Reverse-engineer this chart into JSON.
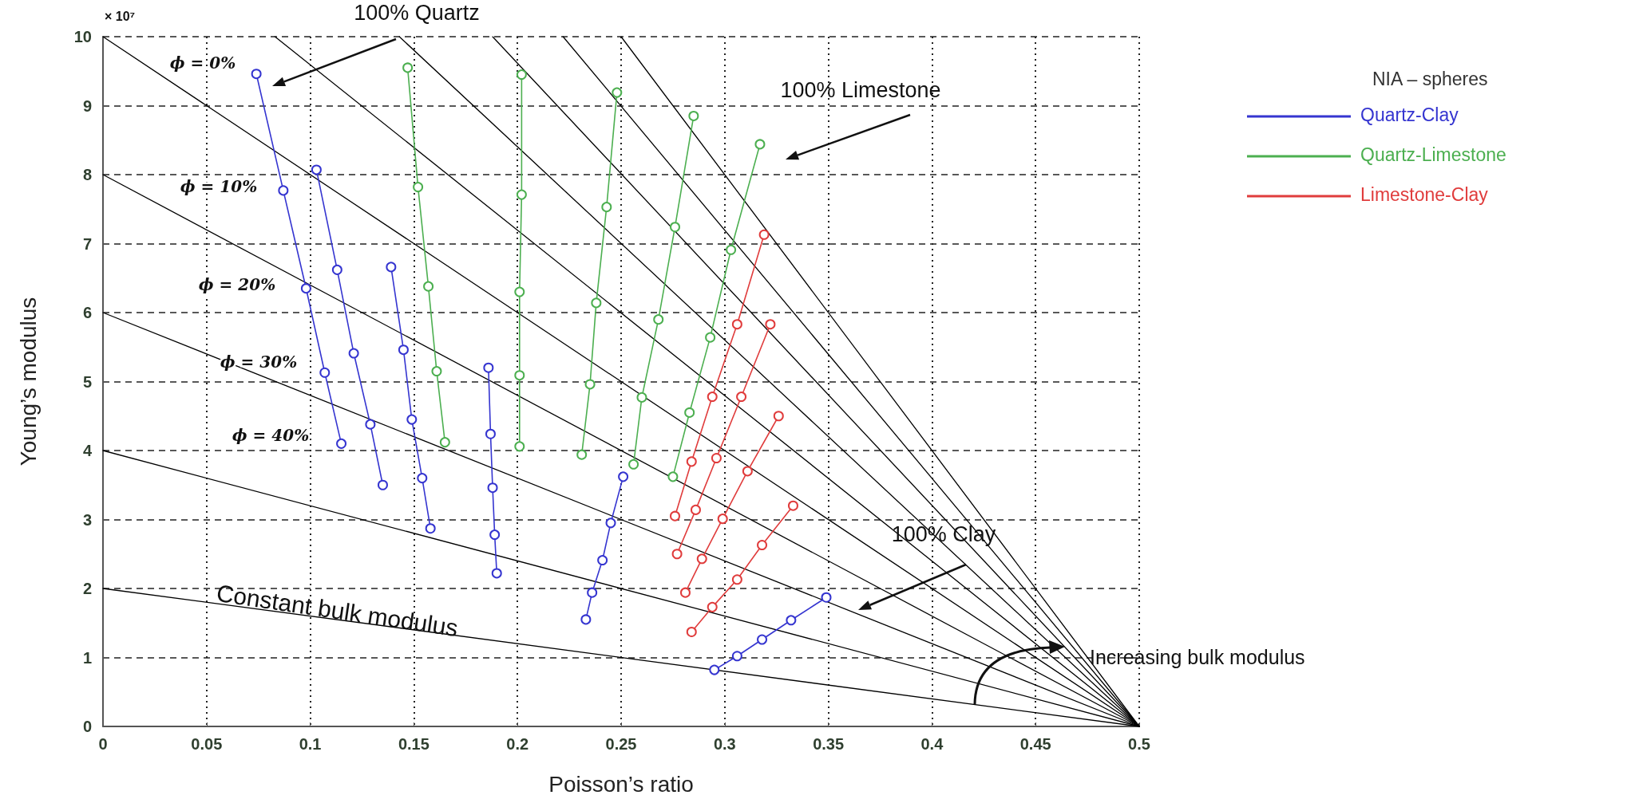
{
  "chart_data": {
    "type": "line",
    "xlabel": "Poisson’s ratio",
    "ylabel": "Young’s modulus",
    "legend_title": "NIA – spheres",
    "xlim": [
      0,
      0.5
    ],
    "xticks": [
      0,
      0.05,
      0.1,
      0.15,
      0.2,
      0.25,
      0.3,
      0.35,
      0.4,
      0.45,
      0.5
    ],
    "ylim": [
      0,
      10
    ],
    "yticks": [
      0,
      1,
      2,
      3,
      4,
      5,
      6,
      7,
      8,
      9,
      10
    ],
    "grid": true,
    "legend": "right",
    "marker": "circle",
    "line_style": "solid",
    "series": [
      {
        "name": "Quartz-Clay",
        "color": "#3535d0",
        "x": [
          0.074,
          0.087,
          0.098,
          0.107,
          0.115,
          null,
          0.103,
          0.113,
          0.121,
          0.129,
          0.135,
          null,
          0.139,
          0.145,
          0.149,
          0.154,
          0.158,
          null,
          0.186,
          0.187,
          0.188,
          0.189,
          0.19,
          null,
          0.233,
          0.236,
          0.241,
          0.245,
          0.251,
          null,
          0.295,
          0.306,
          0.318,
          0.332,
          0.349
        ],
        "values": [
          9.46,
          7.77,
          6.35,
          5.13,
          4.1,
          null,
          8.07,
          6.62,
          5.41,
          4.38,
          3.5,
          null,
          6.66,
          5.46,
          4.45,
          3.6,
          2.87,
          null,
          5.2,
          4.24,
          3.46,
          2.78,
          2.22,
          null,
          1.55,
          1.94,
          2.41,
          2.95,
          3.62,
          null,
          0.82,
          1.02,
          1.26,
          1.54,
          1.87
        ]
      },
      {
        "name": "Quartz-Limestone",
        "color": "#4caf50",
        "x": [
          0.147,
          0.152,
          0.157,
          0.161,
          0.165,
          null,
          0.202,
          0.202,
          0.201,
          0.201,
          0.201,
          null,
          0.248,
          0.243,
          0.238,
          0.235,
          0.231,
          null,
          0.285,
          0.276,
          0.268,
          0.26,
          0.256,
          null,
          0.317,
          0.303,
          0.293,
          0.283,
          0.275
        ],
        "values": [
          9.55,
          7.82,
          6.38,
          5.15,
          4.12,
          null,
          9.45,
          7.71,
          6.3,
          5.09,
          4.06,
          null,
          9.19,
          7.53,
          6.14,
          4.96,
          3.94,
          null,
          8.85,
          7.24,
          5.9,
          4.77,
          3.8,
          null,
          8.44,
          6.91,
          5.64,
          4.55,
          3.62
        ]
      },
      {
        "name": "Limestone-Clay",
        "color": "#e03c3c",
        "x": [
          0.319,
          0.306,
          0.294,
          0.284,
          0.276,
          null,
          0.322,
          0.308,
          0.296,
          0.286,
          0.277,
          null,
          0.326,
          0.311,
          0.299,
          0.289,
          0.281,
          null,
          0.333,
          0.318,
          0.306,
          0.294,
          0.284
        ],
        "values": [
          7.13,
          5.83,
          4.78,
          3.84,
          3.05,
          null,
          5.83,
          4.78,
          3.89,
          3.14,
          2.5,
          null,
          4.5,
          3.7,
          3.01,
          2.43,
          1.94,
          null,
          3.2,
          2.63,
          2.13,
          1.73,
          1.37
        ]
      },
      {
        "color": "#000000",
        "marker": "none",
        "x": [
          0,
          0.5
        ],
        "values": [
          2,
          0
        ]
      },
      {
        "color": "#000000",
        "marker": "none",
        "x": [
          0,
          0.5
        ],
        "values": [
          4,
          0
        ]
      },
      {
        "color": "#000000",
        "marker": "none",
        "x": [
          0,
          0.5
        ],
        "values": [
          6,
          0
        ]
      },
      {
        "color": "#000000",
        "marker": "none",
        "x": [
          0,
          0.5
        ],
        "values": [
          8,
          0
        ]
      },
      {
        "color": "#000000",
        "marker": "none",
        "x": [
          0,
          0.5
        ],
        "values": [
          10,
          0
        ]
      },
      {
        "color": "#000000",
        "marker": "none",
        "x": [
          0.083,
          0.5
        ],
        "values": [
          10,
          0
        ]
      },
      {
        "color": "#000000",
        "marker": "none",
        "x": [
          0.143,
          0.5
        ],
        "values": [
          10,
          0
        ]
      },
      {
        "color": "#000000",
        "marker": "none",
        "x": [
          0.188,
          0.5
        ],
        "values": [
          10,
          0
        ]
      },
      {
        "color": "#000000",
        "marker": "none",
        "x": [
          0.222,
          0.5
        ],
        "values": [
          10,
          0
        ]
      },
      {
        "color": "#000000",
        "marker": "none",
        "x": [
          0.25,
          0.5
        ],
        "values": [
          10,
          0
        ]
      }
    ],
    "annotations": [
      "× 10⁷",
      "100% Quartz",
      "100% Limestone",
      "100% Clay",
      "Constant bulk modulus",
      "Increasing bulk modulus",
      "ϕ = 0%",
      "ϕ = 10%",
      "ϕ = 20%",
      "ϕ = 30%",
      "ϕ = 40%"
    ]
  }
}
